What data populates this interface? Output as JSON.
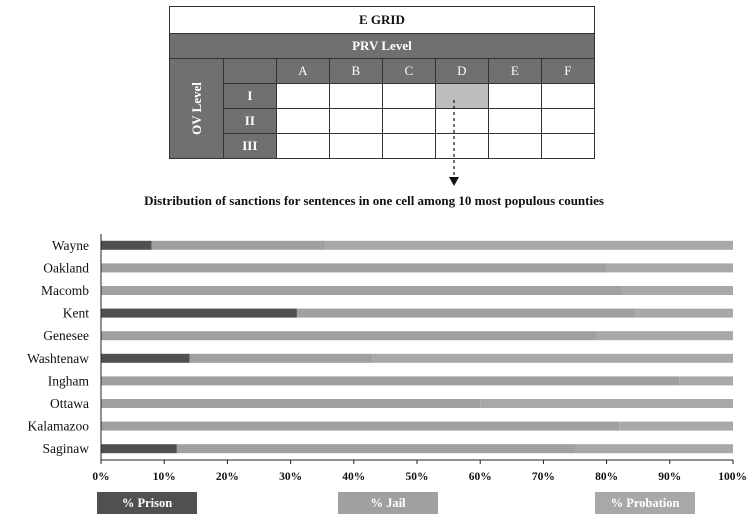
{
  "grid": {
    "title": "E GRID",
    "column_header": "PRV Level",
    "row_header": "OV Level",
    "columns": [
      "A",
      "B",
      "C",
      "D",
      "E",
      "F"
    ],
    "rows": [
      "I",
      "II",
      "III"
    ],
    "highlighted_cell": {
      "row": "I",
      "column": "D"
    }
  },
  "chart_data": {
    "type": "bar",
    "orientation": "horizontal",
    "stacked": true,
    "title": "Distribution of sanctions for sentences in one cell among 10 most populous counties",
    "categories": [
      "Wayne",
      "Oakland",
      "Macomb",
      "Kent",
      "Genesee",
      "Washtenaw",
      "Ingham",
      "Ottawa",
      "Kalamazoo",
      "Saginaw"
    ],
    "series": [
      {
        "name": "% Prison",
        "color": "#505050",
        "values": [
          8,
          0,
          0,
          31,
          0,
          14,
          0,
          0,
          0,
          12
        ]
      },
      {
        "name": "% Jail",
        "color": "#a0a0a0",
        "values": [
          27.5,
          80,
          82.5,
          53.5,
          78.5,
          29,
          91.5,
          60,
          82,
          63
        ]
      },
      {
        "name": "% Probation",
        "color": "#a8a8a8",
        "values": [
          64.5,
          20,
          17.5,
          15.5,
          21.5,
          57,
          8.5,
          40,
          18,
          25
        ]
      }
    ],
    "xlim": [
      0,
      100
    ],
    "xticks": [
      "0%",
      "10%",
      "20%",
      "30%",
      "40%",
      "50%",
      "60%",
      "70%",
      "80%",
      "90%",
      "100%"
    ],
    "grid": false,
    "legend_position": "bottom"
  }
}
